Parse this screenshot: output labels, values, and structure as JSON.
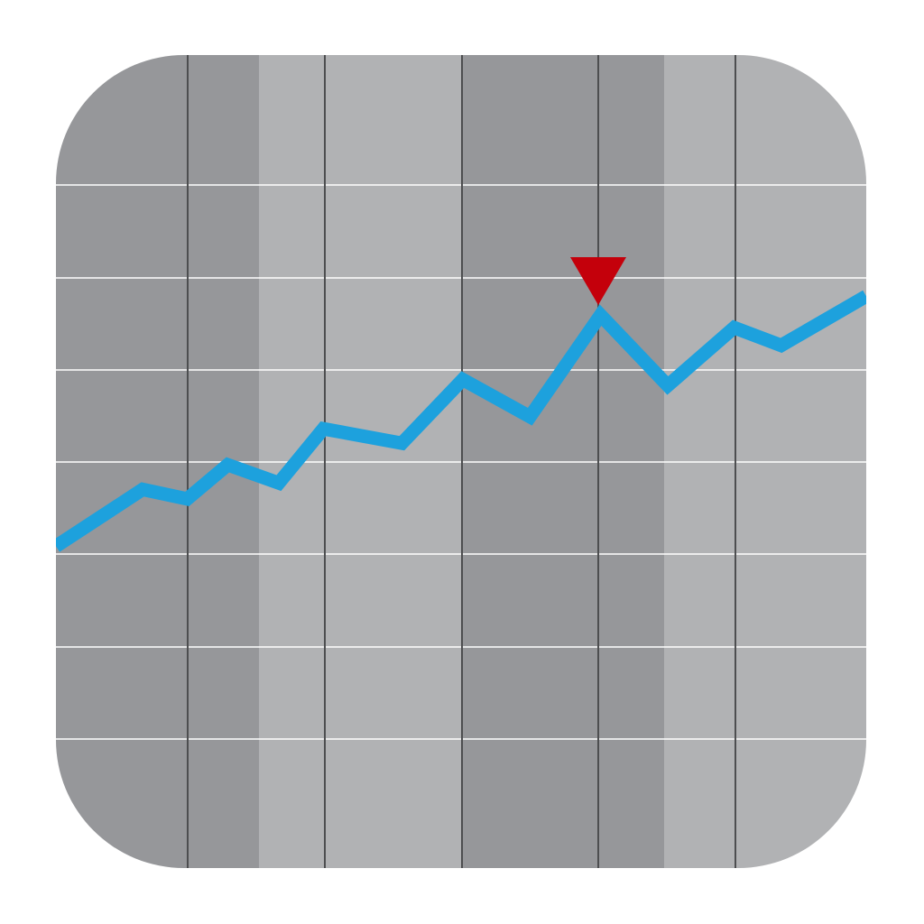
{
  "colors": {
    "background": "#ffffff",
    "band_dark": "#96979a",
    "band_light": "#b1b2b4",
    "vertical_divider": "#4d4e50",
    "horizontal_grid": "#ffffff",
    "trend_line": "#1da1dd",
    "marker": "#c4000b"
  },
  "icon": {
    "name": "stock-trend-chart-app-icon",
    "band_pattern": [
      "dark",
      "dark",
      "light",
      "light",
      "dark",
      "dark",
      "light",
      "light"
    ],
    "marker_icon": "down-triangle-icon"
  },
  "trend": {
    "points": [
      [
        0.0,
        0.28
      ],
      [
        0.107,
        0.43
      ],
      [
        0.162,
        0.405
      ],
      [
        0.212,
        0.495
      ],
      [
        0.275,
        0.447
      ],
      [
        0.33,
        0.59
      ],
      [
        0.427,
        0.552
      ],
      [
        0.502,
        0.72
      ],
      [
        0.585,
        0.622
      ],
      [
        0.672,
        0.89
      ],
      [
        0.755,
        0.704
      ],
      [
        0.837,
        0.857
      ],
      [
        0.895,
        0.81
      ],
      [
        1.0,
        0.94
      ]
    ],
    "marker_index": 9
  }
}
